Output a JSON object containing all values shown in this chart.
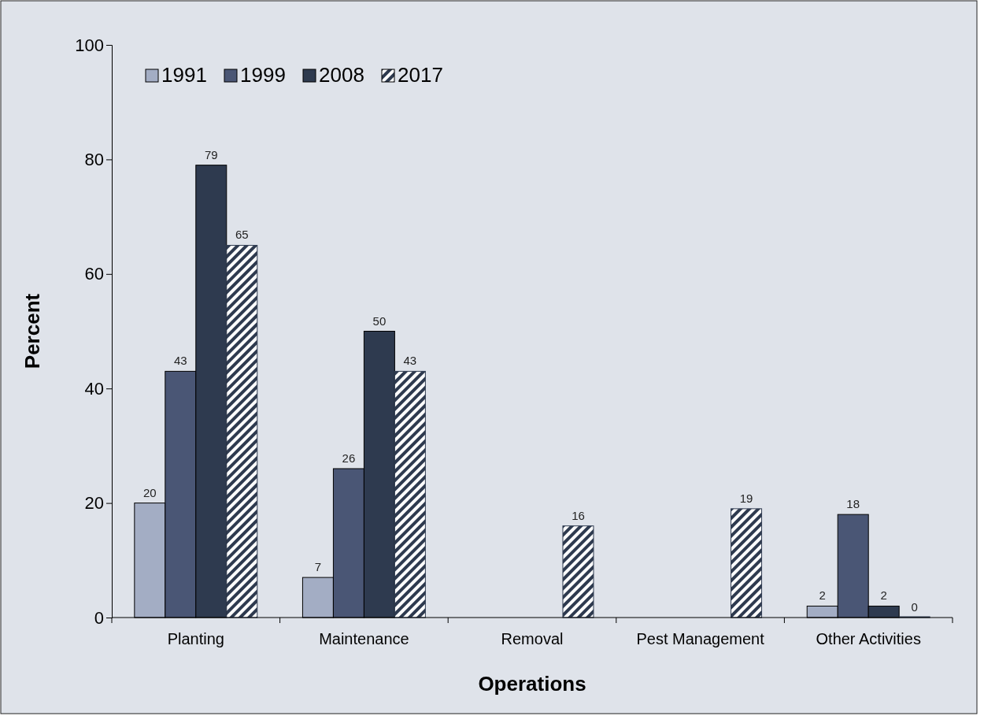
{
  "chart_data": {
    "type": "bar",
    "xlabel": "Operations",
    "ylabel": "Percent",
    "categories": [
      "Planting",
      "Maintenance",
      "Removal",
      "Pest Management",
      "Other Activities"
    ],
    "series": [
      {
        "name": "1991",
        "color": "#a3adc4",
        "values": [
          20,
          7,
          null,
          null,
          2
        ]
      },
      {
        "name": "1999",
        "color": "#4a5675",
        "values": [
          43,
          26,
          null,
          null,
          18
        ]
      },
      {
        "name": "2008",
        "color": "#2e3a4f",
        "values": [
          79,
          50,
          null,
          null,
          2
        ]
      },
      {
        "name": "2017",
        "color": "#2e3a4f",
        "values": [
          65,
          43,
          16,
          19,
          0
        ]
      }
    ],
    "ylim": [
      0,
      100
    ],
    "yticks": [
      0,
      20,
      40,
      60,
      80,
      100
    ],
    "data_labels": true,
    "legend": "top left",
    "grid": false
  }
}
